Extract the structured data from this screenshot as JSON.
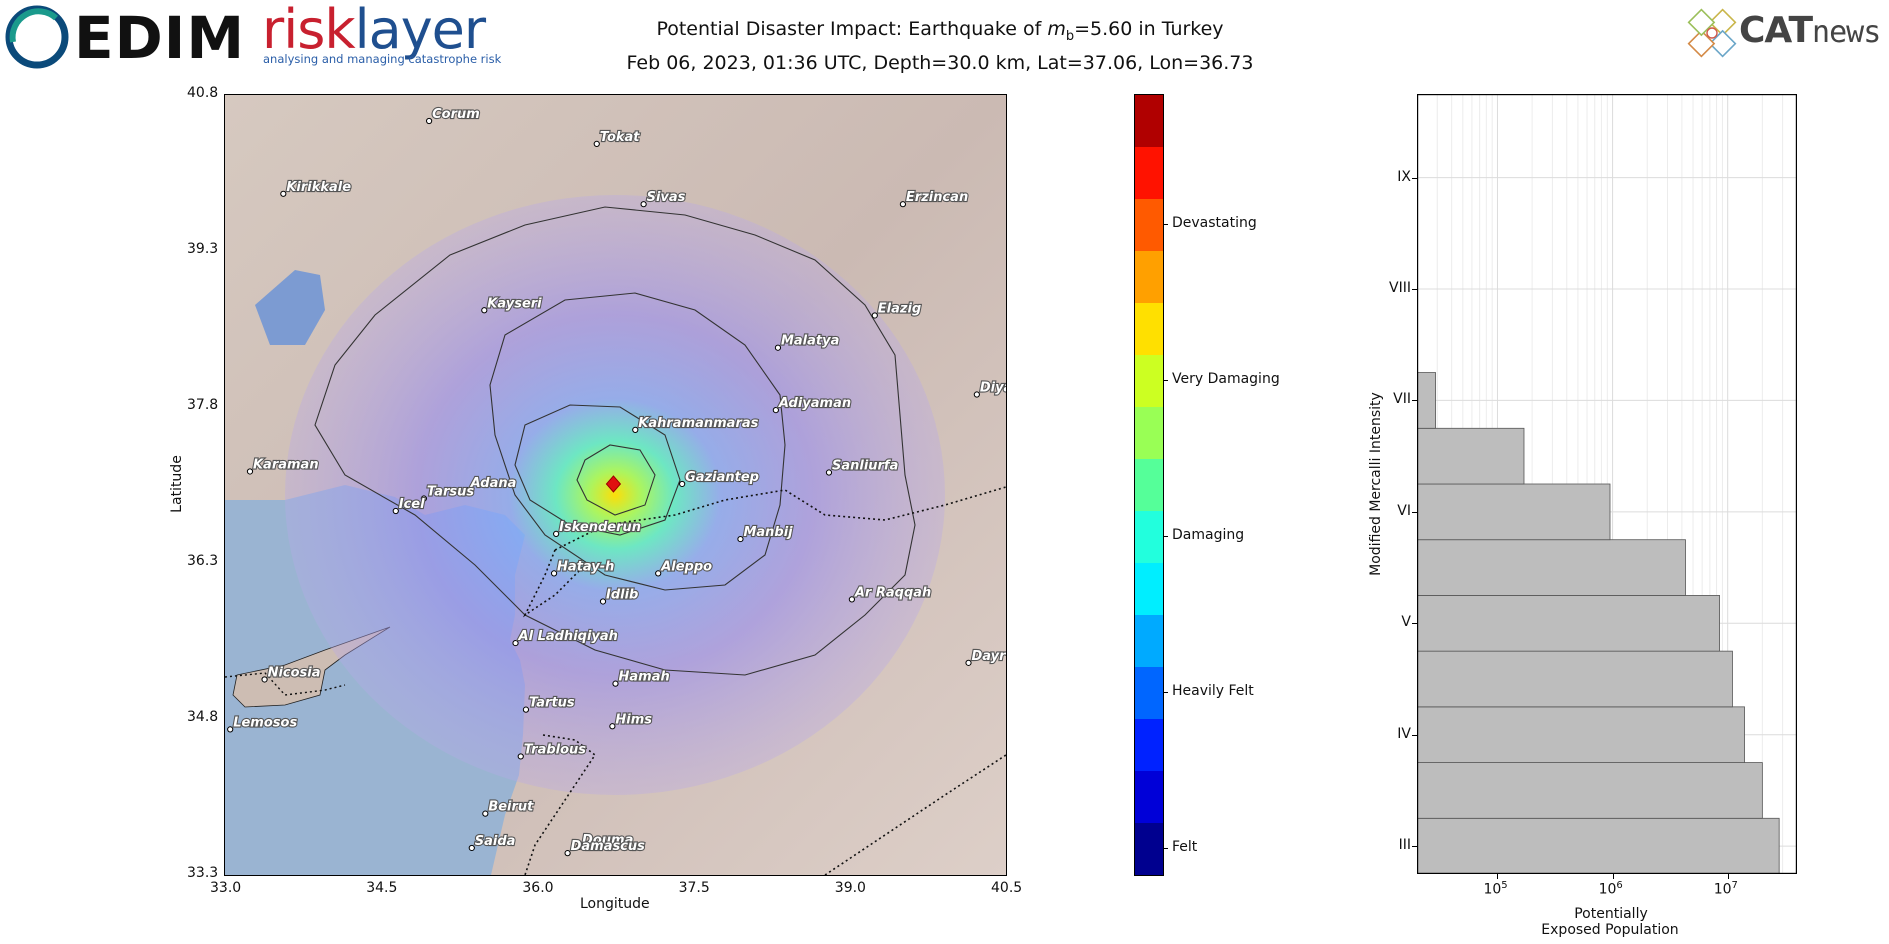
{
  "logos": {
    "cedim": "EDIM",
    "risklayer_part1": "risk",
    "risklayer_part2": "layer",
    "risklayer_tagline": "analysing and managing catastrophe risk",
    "catnews_part1": "CAT",
    "catnews_part2": "news"
  },
  "title": {
    "line1_prefix": "Potential Disaster Impact: Earthquake of ",
    "magnitude_symbol": "m",
    "magnitude_sub": "b",
    "line1_suffix": "=5.60 in Turkey",
    "line2": "Feb 06, 2023, 01:36 UTC, Depth=30.0 km, Lat=37.06, Lon=36.73"
  },
  "chart_data": [
    {
      "type": "map",
      "xlabel": "Longitude",
      "ylabel": "Latitude",
      "xlim": [
        33.0,
        40.5
      ],
      "ylim": [
        33.3,
        40.8
      ],
      "xticks": [
        "33.0",
        "34.5",
        "36.0",
        "37.5",
        "39.0",
        "40.5"
      ],
      "yticks": [
        "33.3",
        "34.8",
        "36.3",
        "37.8",
        "39.3",
        "40.8"
      ],
      "epicenter": {
        "lon": 36.73,
        "lat": 37.06
      },
      "cities": [
        {
          "name": "Corum",
          "lon": 34.96,
          "lat": 40.55
        },
        {
          "name": "Tokat",
          "lon": 36.57,
          "lat": 40.33
        },
        {
          "name": "Kirikkale",
          "lon": 33.56,
          "lat": 39.85
        },
        {
          "name": "Sivas",
          "lon": 37.02,
          "lat": 39.75
        },
        {
          "name": "Erzincan",
          "lon": 39.51,
          "lat": 39.75
        },
        {
          "name": "Kayseri",
          "lon": 35.49,
          "lat": 38.73
        },
        {
          "name": "Elazig",
          "lon": 39.24,
          "lat": 38.68
        },
        {
          "name": "Malatya",
          "lon": 38.31,
          "lat": 38.37
        },
        {
          "name": "Diyarbakir",
          "lon": 40.22,
          "lat": 37.92
        },
        {
          "name": "Kahramanmaras",
          "lon": 36.94,
          "lat": 37.58
        },
        {
          "name": "Adiyaman",
          "lon": 38.29,
          "lat": 37.77
        },
        {
          "name": "Karaman",
          "lon": 33.24,
          "lat": 37.18
        },
        {
          "name": "Sanliurfa",
          "lon": 38.8,
          "lat": 37.17
        },
        {
          "name": "Gaziantep",
          "lon": 37.39,
          "lat": 37.06
        },
        {
          "name": "Adana",
          "lon": 35.33,
          "lat": 37.0
        },
        {
          "name": "Tarsus",
          "lon": 34.91,
          "lat": 36.92
        },
        {
          "name": "Icel",
          "lon": 34.64,
          "lat": 36.8
        },
        {
          "name": "Iskenderun",
          "lon": 36.18,
          "lat": 36.58
        },
        {
          "name": "Manbij",
          "lon": 37.95,
          "lat": 36.53
        },
        {
          "name": "Hatay-h",
          "lon": 36.16,
          "lat": 36.2
        },
        {
          "name": "Aleppo",
          "lon": 37.16,
          "lat": 36.2
        },
        {
          "name": "Idlib",
          "lon": 36.63,
          "lat": 35.93
        },
        {
          "name": "Ar Raqqah",
          "lon": 39.02,
          "lat": 35.95
        },
        {
          "name": "Al Ladhiqiyah",
          "lon": 35.79,
          "lat": 35.53
        },
        {
          "name": "Nicosia",
          "lon": 33.38,
          "lat": 35.18
        },
        {
          "name": "Dayr az Zawr",
          "lon": 40.14,
          "lat": 35.34
        },
        {
          "name": "Hamah",
          "lon": 36.75,
          "lat": 35.14
        },
        {
          "name": "Tartus",
          "lon": 35.89,
          "lat": 34.89
        },
        {
          "name": "Lemosos",
          "lon": 33.05,
          "lat": 34.7
        },
        {
          "name": "Hims",
          "lon": 36.72,
          "lat": 34.73
        },
        {
          "name": "Trablous",
          "lon": 35.84,
          "lat": 34.44
        },
        {
          "name": "Beirut",
          "lon": 35.5,
          "lat": 33.89
        },
        {
          "name": "Saida",
          "lon": 35.37,
          "lat": 33.56
        },
        {
          "name": "Douma",
          "lon": 36.4,
          "lat": 33.57
        },
        {
          "name": "Damascus",
          "lon": 36.29,
          "lat": 33.51
        }
      ]
    },
    {
      "type": "colorbar",
      "colors": [
        "#00008f",
        "#0000d8",
        "#0022ff",
        "#0066ff",
        "#00aaff",
        "#00eeff",
        "#22ffdd",
        "#55ff99",
        "#99ff55",
        "#ccff22",
        "#ffe000",
        "#ffa000",
        "#ff5a00",
        "#ff1200",
        "#b00000"
      ],
      "labels": [
        "Felt",
        "Heavily Felt",
        "Damaging",
        "Very Damaging",
        "Devastating"
      ],
      "label_positions": [
        0.5,
        3.5,
        6.5,
        9.5,
        12.5
      ]
    },
    {
      "type": "bar",
      "orientation": "horizontal",
      "xlabel_line1": "Potentially",
      "xlabel_line2": "Exposed Population",
      "ylabel": "Modified Mercalli Intensity",
      "xscale": "log",
      "xlim": [
        20000,
        40000000
      ],
      "ylim": [
        2.75,
        9.75
      ],
      "xticks": [
        {
          "base": "10",
          "exp": "5",
          "value": 100000
        },
        {
          "base": "10",
          "exp": "6",
          "value": 1000000
        },
        {
          "base": "10",
          "exp": "7",
          "value": 10000000
        }
      ],
      "yticks": [
        {
          "label": "III",
          "value": 3
        },
        {
          "label": "IV",
          "value": 4
        },
        {
          "label": "V",
          "value": 5
        },
        {
          "label": "VI",
          "value": 6
        },
        {
          "label": "VII",
          "value": 7
        },
        {
          "label": "VIII",
          "value": 8
        },
        {
          "label": "IX",
          "value": 9
        }
      ],
      "bars": [
        {
          "from": 2.75,
          "to": 3.25,
          "value": 28000000
        },
        {
          "from": 3.25,
          "to": 3.75,
          "value": 20000000
        },
        {
          "from": 3.75,
          "to": 4.25,
          "value": 14000000
        },
        {
          "from": 4.25,
          "to": 4.75,
          "value": 11000000
        },
        {
          "from": 4.75,
          "to": 5.25,
          "value": 8500000
        },
        {
          "from": 5.25,
          "to": 5.75,
          "value": 4300000
        },
        {
          "from": 5.75,
          "to": 6.25,
          "value": 950000
        },
        {
          "from": 6.25,
          "to": 6.75,
          "value": 170000
        },
        {
          "from": 6.75,
          "to": 7.25,
          "value": 29000
        }
      ],
      "bar_color": "#bdbdbd",
      "grid": true
    }
  ]
}
